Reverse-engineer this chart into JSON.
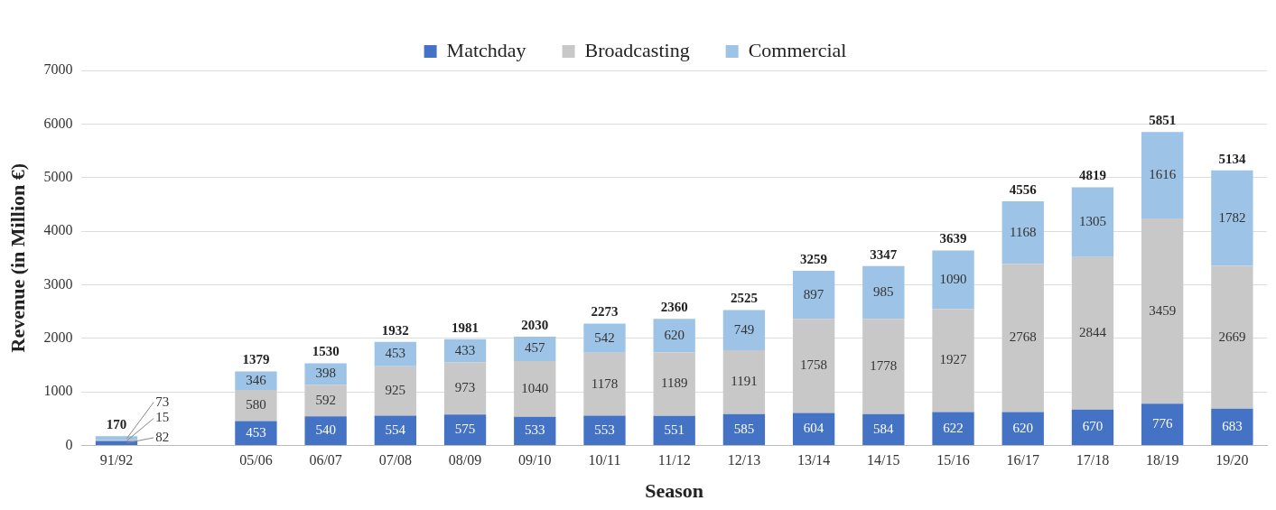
{
  "chart_data": {
    "type": "bar",
    "stacked": true,
    "xlabel": "Season",
    "ylabel": "Revenue (in Million €)",
    "categories": [
      "91/92",
      null,
      "05/06",
      "06/07",
      "07/08",
      "08/09",
      "09/10",
      "10/11",
      "11/12",
      "12/13",
      "13/14",
      "14/15",
      "15/16",
      "16/17",
      "17/18",
      "18/19",
      "19/20"
    ],
    "series": [
      {
        "name": "Matchday",
        "color": "#4472c4",
        "values": [
          82,
          null,
          453,
          540,
          554,
          575,
          533,
          553,
          551,
          585,
          604,
          584,
          622,
          620,
          670,
          776,
          683
        ]
      },
      {
        "name": "Broadcasting",
        "color": "#c8c8c8",
        "values": [
          15,
          null,
          580,
          592,
          925,
          973,
          1040,
          1178,
          1189,
          1191,
          1758,
          1778,
          1927,
          2768,
          2844,
          3459,
          2669
        ]
      },
      {
        "name": "Commercial",
        "color": "#9dc3e6",
        "values": [
          73,
          null,
          346,
          398,
          453,
          433,
          457,
          542,
          620,
          749,
          897,
          985,
          1090,
          1168,
          1305,
          1616,
          1782
        ]
      }
    ],
    "totals": [
      "170",
      null,
      "1379",
      "1530",
      "1932",
      "1981",
      "2030",
      "2273",
      "2360",
      "2525",
      "3259",
      "3347",
      "3639",
      "4556",
      "4819",
      "5851",
      "5134"
    ],
    "data_labels": true,
    "ylim": [
      0,
      7000
    ],
    "yticks": [
      0,
      1000,
      2000,
      3000,
      4000,
      5000,
      6000,
      7000
    ],
    "grid": "y",
    "legend": "top"
  }
}
